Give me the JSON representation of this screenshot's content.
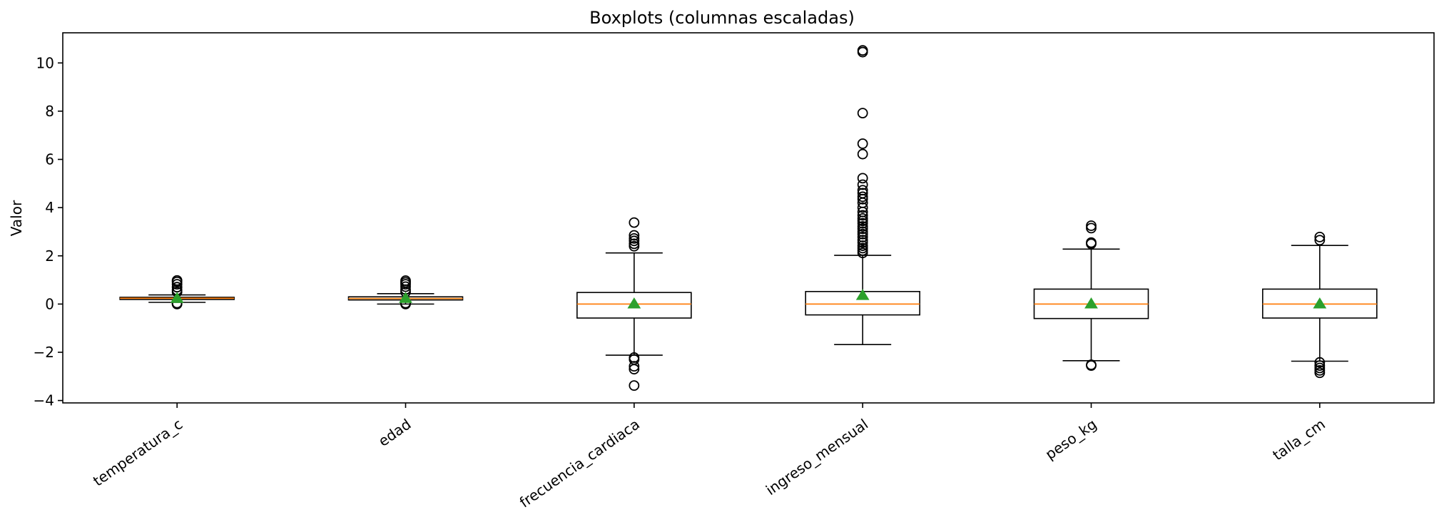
{
  "chart_data": {
    "type": "boxplot",
    "title": "Boxplots (columnas escaladas)",
    "xlabel": "",
    "ylabel": "Valor",
    "ylim": [
      -4.1,
      11.25
    ],
    "yticks": [
      -4,
      -2,
      0,
      2,
      4,
      6,
      8,
      10
    ],
    "ytick_labels": [
      "−4",
      "−2",
      "0",
      "2",
      "4",
      "6",
      "8",
      "10"
    ],
    "grid": false,
    "colors": {
      "box": "#000000",
      "median": "#ff7f0e",
      "mean": "#2ca02c"
    },
    "categories": [
      "temperatura_c",
      "edad",
      "frecuencia_cardiaca",
      "ingreso_mensual",
      "peso_kg",
      "talla_cm"
    ],
    "series": [
      {
        "q1": 0.19,
        "median": 0.24,
        "q3": 0.28,
        "whisker_low": 0.07,
        "whisker_high": 0.38,
        "mean": 0.23,
        "outliers": [
          0.0,
          0.02,
          0.04,
          0.5,
          0.58,
          0.7,
          0.82,
          0.92,
          0.98
        ]
      },
      {
        "q1": 0.17,
        "median": 0.23,
        "q3": 0.3,
        "whisker_low": 0.0,
        "whisker_high": 0.43,
        "mean": 0.23,
        "outliers": [
          0.0,
          0.04,
          0.5,
          0.6,
          0.72,
          0.82,
          0.9,
          0.97
        ]
      },
      {
        "q1": -0.58,
        "median": 0.0,
        "q3": 0.48,
        "whisker_low": -2.12,
        "whisker_high": 2.12,
        "mean": 0.0,
        "outliers": [
          -3.38,
          -2.7,
          -2.58,
          -2.3,
          -2.22,
          2.4,
          2.5,
          2.62,
          2.72,
          2.85,
          3.38
        ]
      },
      {
        "q1": -0.45,
        "median": 0.0,
        "q3": 0.52,
        "whisker_low": -1.68,
        "whisker_high": 2.02,
        "mean": 0.35,
        "outliers": [
          2.12,
          2.22,
          2.32,
          2.42,
          2.55,
          2.65,
          2.78,
          2.9,
          3.0,
          3.12,
          3.22,
          3.35,
          3.45,
          3.55,
          3.68,
          3.82,
          4.0,
          4.2,
          4.35,
          4.45,
          4.6,
          4.72,
          4.95,
          5.22,
          6.22,
          6.65,
          7.92,
          10.45,
          10.52
        ]
      },
      {
        "q1": -0.6,
        "median": 0.0,
        "q3": 0.62,
        "whisker_low": -2.35,
        "whisker_high": 2.28,
        "mean": 0.0,
        "outliers": [
          -2.55,
          -2.52,
          2.5,
          2.55,
          3.15,
          3.25
        ]
      },
      {
        "q1": -0.58,
        "median": 0.0,
        "q3": 0.62,
        "whisker_low": -2.37,
        "whisker_high": 2.43,
        "mean": 0.0,
        "outliers": [
          -2.85,
          -2.75,
          -2.65,
          -2.55,
          -2.42,
          2.65,
          2.78
        ]
      }
    ]
  }
}
